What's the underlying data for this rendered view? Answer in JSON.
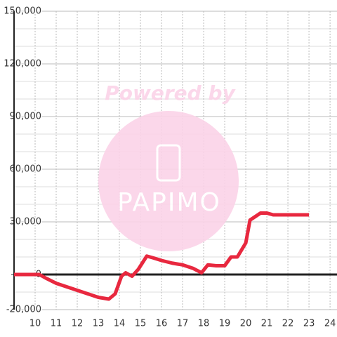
{
  "chart_data": {
    "type": "line",
    "watermark": {
      "top": "Powered by",
      "brand": "PAPIMO"
    },
    "x": [
      9,
      10.2,
      10.5,
      11,
      11.5,
      12,
      12.5,
      13,
      13.5,
      13.8,
      14.1,
      14.3,
      14.6,
      14.9,
      15.3,
      15.6,
      16,
      16.5,
      17,
      17.5,
      17.9,
      18.2,
      18.6,
      19,
      19.3,
      19.6,
      20,
      20.2,
      20.7,
      21,
      21.3,
      23
    ],
    "series": [
      {
        "color": "#e8283f",
        "values": [
          0,
          0,
          -2000,
          -5000,
          -7000,
          -9000,
          -11000,
          -13000,
          -14000,
          -11000,
          -1000,
          1000,
          -1000,
          3000,
          10500,
          9500,
          8000,
          6500,
          5500,
          3500,
          1000,
          5500,
          5000,
          5000,
          10000,
          10000,
          18000,
          31000,
          35000,
          35000,
          34000,
          34000
        ]
      }
    ],
    "xlim": [
      9,
      24.33
    ],
    "ylim": [
      -20000,
      150000
    ],
    "xticks": [
      10,
      11,
      12,
      13,
      14,
      15,
      16,
      17,
      18,
      19,
      20,
      21,
      22,
      23,
      24
    ],
    "yticks": [
      {
        "value": -20000,
        "label": "-20,000"
      },
      {
        "value": 0,
        "label": "0"
      },
      {
        "value": 30000,
        "label": "30,000"
      },
      {
        "value": 60000,
        "label": "60,000"
      },
      {
        "value": 90000,
        "label": "90,000"
      },
      {
        "value": 120000,
        "label": "120,000"
      },
      {
        "value": 150000,
        "label": "150,000"
      }
    ],
    "yminorticks": [
      -10000,
      10000,
      20000,
      40000,
      50000,
      70000,
      80000,
      100000,
      110000,
      130000,
      140000
    ],
    "grid": true
  }
}
